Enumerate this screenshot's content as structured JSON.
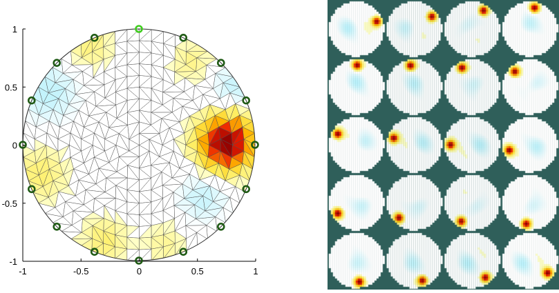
{
  "chart_data": {
    "type": "heatmap",
    "description_kind": "EIT circular mesh reconstruction with electrode markers",
    "xlim": [
      -1,
      1
    ],
    "ylim": [
      -1,
      1
    ],
    "x_ticks": [
      "-1",
      "-0.5",
      "0",
      "0.5",
      "1"
    ],
    "y_ticks": [
      "1",
      "0.5",
      "0",
      "-0.5",
      "-1"
    ],
    "electrode_count": 16,
    "active_electrode_index": 0,
    "colors": {
      "electrode": "#1f5a14",
      "active_electrode": "#3fcc1e",
      "mesh_line": "#505050",
      "panel_background": "#2f5f5a"
    },
    "blobs": [
      {
        "x": 0.75,
        "y": 0.02,
        "strength": 1.0,
        "spread": 0.16
      },
      {
        "x": 0.45,
        "y": 0.72,
        "strength": 0.14,
        "spread": 0.12
      },
      {
        "x": -0.78,
        "y": 0.45,
        "strength": -0.22,
        "spread": 0.18
      },
      {
        "x": -0.85,
        "y": -0.25,
        "strength": 0.18,
        "spread": 0.16
      },
      {
        "x": 0.82,
        "y": 0.5,
        "strength": -0.2,
        "spread": 0.14
      },
      {
        "x": 0.55,
        "y": -0.45,
        "strength": -0.2,
        "spread": 0.15
      },
      {
        "x": -0.3,
        "y": -0.82,
        "strength": 0.18,
        "spread": 0.14
      },
      {
        "x": -0.42,
        "y": 0.85,
        "strength": 0.16,
        "spread": 0.13
      },
      {
        "x": 0.22,
        "y": -0.85,
        "strength": 0.12,
        "spread": 0.12
      }
    ],
    "thumbnails": {
      "rows": 5,
      "cols": 4,
      "hotspot_angles_deg": [
        20,
        35,
        58,
        78,
        88,
        100,
        118,
        135,
        150,
        162,
        180,
        195,
        210,
        225,
        240,
        260,
        278,
        292,
        308,
        325
      ]
    }
  }
}
